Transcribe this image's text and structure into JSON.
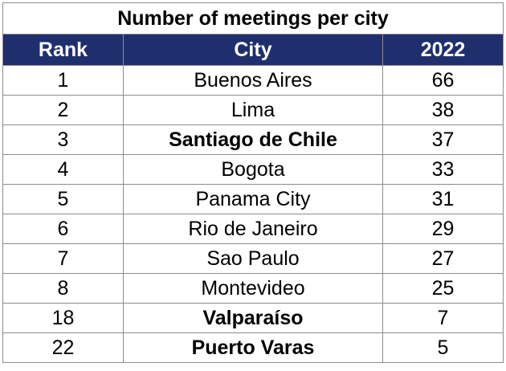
{
  "chart_data": {
    "type": "table",
    "title": "Number of meetings per city",
    "columns": [
      "Rank",
      "City",
      "2022"
    ],
    "header_color": "#1f2f6e",
    "rows": [
      {
        "rank": "1",
        "city": "Buenos Aires",
        "value": 66,
        "bold": false
      },
      {
        "rank": "2",
        "city": "Lima",
        "value": 38,
        "bold": false
      },
      {
        "rank": "3",
        "city": "Santiago de Chile",
        "value": 37,
        "bold": true
      },
      {
        "rank": "4",
        "city": "Bogota",
        "value": 33,
        "bold": false
      },
      {
        "rank": "5",
        "city": "Panama City",
        "value": 31,
        "bold": false
      },
      {
        "rank": "6",
        "city": "Rio de Janeiro",
        "value": 29,
        "bold": false
      },
      {
        "rank": "7",
        "city": "Sao Paulo",
        "value": 27,
        "bold": false
      },
      {
        "rank": "8",
        "city": "Montevideo",
        "value": 25,
        "bold": false
      },
      {
        "rank": "18",
        "city": "Valparaíso",
        "value": 7,
        "bold": true
      },
      {
        "rank": "22",
        "city": "Puerto Varas",
        "value": 5,
        "bold": true
      }
    ]
  }
}
